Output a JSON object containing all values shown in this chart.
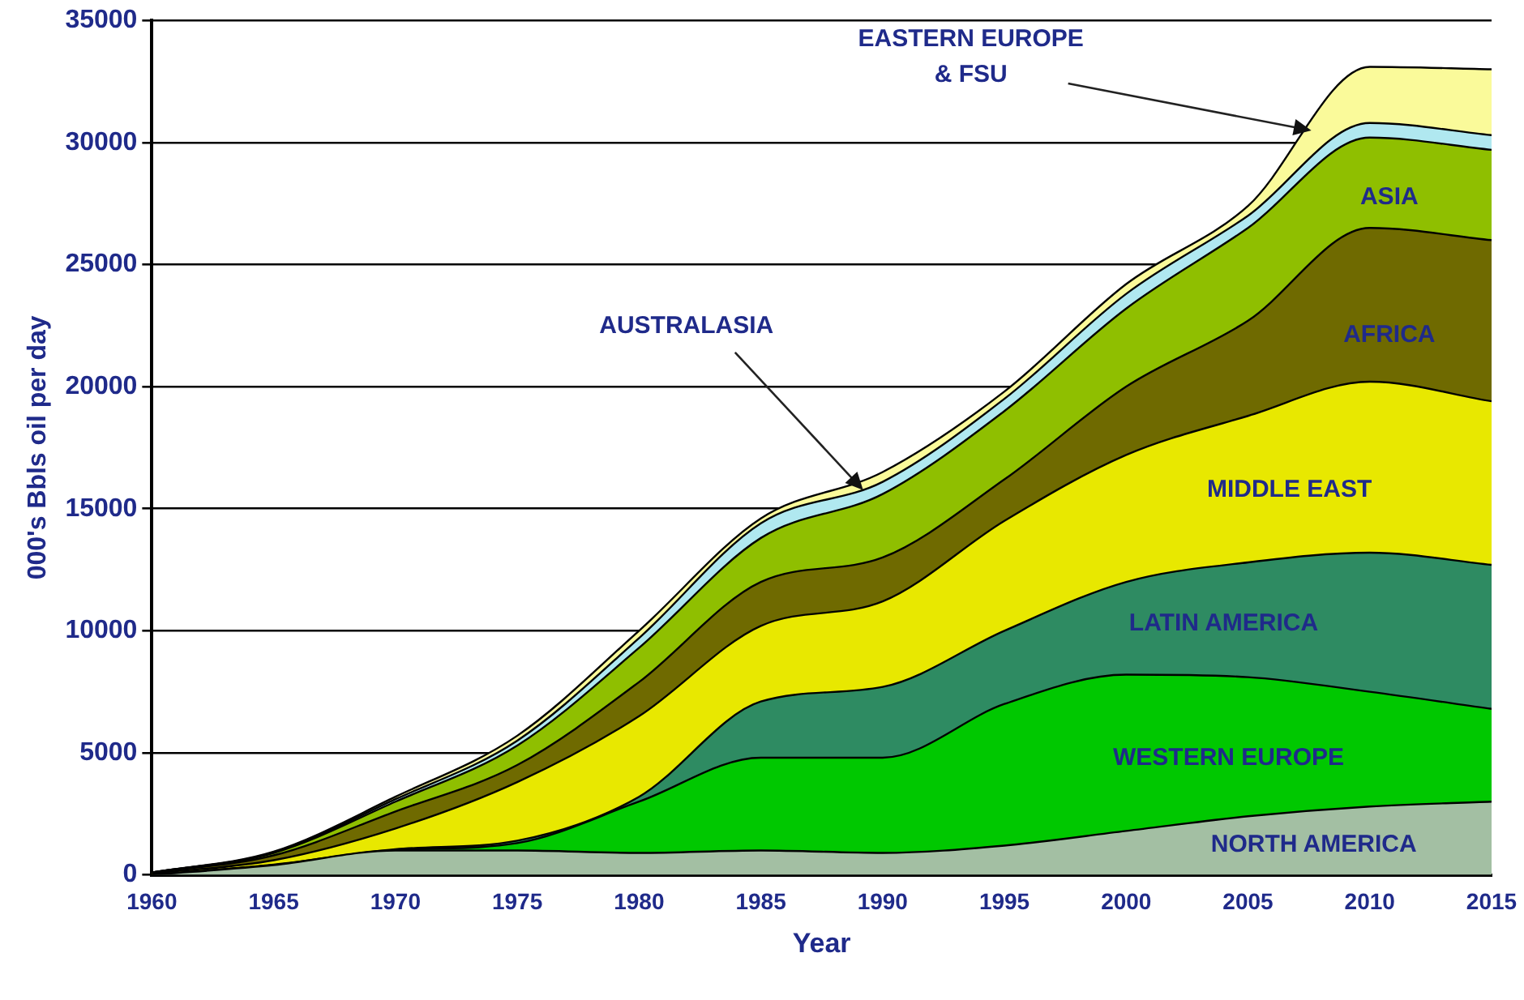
{
  "chart_data": {
    "type": "area",
    "stacked": true,
    "xlabel": "Year",
    "ylabel": "000's Bbls oil per day",
    "x": [
      1960,
      1965,
      1970,
      1975,
      1980,
      1985,
      1990,
      1995,
      2000,
      2005,
      2010,
      2015
    ],
    "series": [
      {
        "name": "NORTH AMERICA",
        "color": "#a3bfa3",
        "values": [
          0,
          400,
          1000,
          1000,
          900,
          1000,
          900,
          1200,
          1800,
          2400,
          2800,
          3000
        ]
      },
      {
        "name": "WESTERN EUROPE",
        "color": "#00c800",
        "values": [
          0,
          0,
          0,
          300,
          2100,
          3800,
          3900,
          5800,
          6400,
          5700,
          4700,
          3800
        ]
      },
      {
        "name": "LATIN AMERICA",
        "color": "#2e8b62",
        "values": [
          0,
          20,
          50,
          100,
          200,
          2300,
          2900,
          3000,
          3800,
          4700,
          5700,
          5900
        ]
      },
      {
        "name": "MIDDLE EAST",
        "color": "#e8e800",
        "values": [
          50,
          180,
          850,
          2400,
          3300,
          3100,
          3500,
          4500,
          5200,
          6000,
          7000,
          6700
        ]
      },
      {
        "name": "AFRICA",
        "color": "#6f6a00",
        "values": [
          30,
          200,
          700,
          700,
          1400,
          1800,
          1800,
          1700,
          2800,
          3900,
          6300,
          6600
        ]
      },
      {
        "name": "ASIA",
        "color": "#8fbf00",
        "values": [
          20,
          100,
          400,
          800,
          1400,
          1800,
          2600,
          2800,
          3200,
          3800,
          3700,
          3700
        ]
      },
      {
        "color": "#b0e8f0",
        "values": [
          0,
          20,
          100,
          200,
          400,
          600,
          500,
          500,
          600,
          500,
          600,
          600
        ]
      },
      {
        "color": "#fafa9a",
        "values": [
          0,
          30,
          100,
          200,
          300,
          200,
          400,
          300,
          400,
          400,
          2300,
          2700
        ]
      }
    ],
    "xlim": [
      1960,
      2015
    ],
    "xticks": [
      1960,
      1965,
      1970,
      1975,
      1980,
      1985,
      1990,
      1995,
      2000,
      2005,
      2010,
      2015
    ],
    "ylim": [
      0,
      35000
    ],
    "yticks": [
      0,
      5000,
      10000,
      15000,
      20000,
      25000,
      30000,
      35000
    ],
    "annotations": [
      {
        "text": "AUSTRALASIA",
        "x": 1989.2,
        "y": 15760
      },
      {
        "text": "EASTERN EUROPE\n& FSU",
        "x": 2007.6,
        "y": 30490
      }
    ],
    "grid": "y",
    "legend": false
  }
}
